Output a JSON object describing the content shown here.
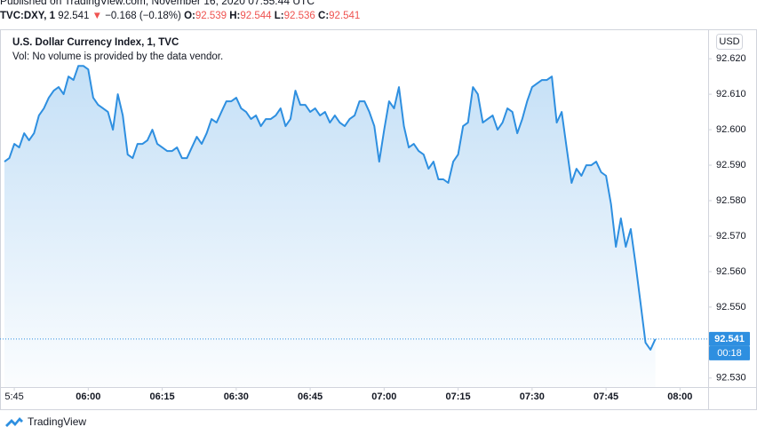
{
  "header": {
    "published": "Published on TradingView.com, November 16, 2020 07:55:44 UTC",
    "symbol": "TVC:DXY, 1",
    "last": "92.541",
    "arrow": "▼",
    "change": "−0.168 (−0.18%)",
    "o_label": "O:",
    "o": "92.539",
    "h_label": "H:",
    "h": "92.544",
    "l_label": "L:",
    "l": "92.536",
    "c_label": "C:",
    "c": "92.541"
  },
  "legend": {
    "title": "U.S. Dollar Currency Index, 1, TVC",
    "volume": "Vol: No volume is provided by the data vendor."
  },
  "currency_button": "USD",
  "footer": {
    "brand": "TradingView"
  },
  "chart_data": {
    "type": "area",
    "color": "#2e8fe0",
    "x": [
      343,
      344,
      345,
      346,
      347,
      348,
      349,
      350,
      351,
      352,
      353,
      354,
      355,
      356,
      357,
      358,
      359,
      360,
      361,
      362,
      363,
      364,
      365,
      366,
      367,
      368,
      369,
      370,
      371,
      372,
      373,
      374,
      375,
      376,
      377,
      378,
      379,
      380,
      381,
      382,
      383,
      384,
      385,
      386,
      387,
      388,
      389,
      390,
      391,
      392,
      393,
      394,
      395,
      396,
      397,
      398,
      399,
      400,
      401,
      402,
      403,
      404,
      405,
      406,
      407,
      408,
      409,
      410,
      411,
      412,
      413,
      414,
      415,
      416,
      417,
      418,
      419,
      420,
      421,
      422,
      423,
      424,
      425,
      426,
      427,
      428,
      429,
      430,
      431,
      432,
      433,
      434,
      435,
      436,
      437,
      438,
      439,
      440,
      441,
      442,
      443,
      444,
      445,
      446,
      447,
      448,
      449,
      450,
      451,
      452,
      453,
      454,
      455,
      456,
      457,
      458,
      459,
      460,
      461,
      462,
      463,
      464,
      465,
      466,
      467,
      468,
      469,
      470,
      471,
      472,
      473,
      474,
      475
    ],
    "values": [
      92.591,
      92.592,
      92.596,
      92.595,
      92.599,
      92.597,
      92.599,
      92.604,
      92.606,
      92.609,
      92.611,
      92.612,
      92.61,
      92.615,
      92.614,
      92.618,
      92.618,
      92.617,
      92.609,
      92.607,
      92.606,
      92.605,
      92.6,
      92.61,
      92.604,
      92.593,
      92.592,
      92.596,
      92.596,
      92.597,
      92.6,
      92.596,
      92.595,
      92.594,
      92.594,
      92.595,
      92.592,
      92.592,
      92.595,
      92.598,
      92.596,
      92.599,
      92.603,
      92.602,
      92.605,
      92.608,
      92.608,
      92.609,
      92.606,
      92.605,
      92.603,
      92.604,
      92.601,
      92.603,
      92.603,
      92.604,
      92.606,
      92.601,
      92.603,
      92.611,
      92.607,
      92.607,
      92.605,
      92.606,
      92.604,
      92.605,
      92.602,
      92.604,
      92.602,
      92.601,
      92.603,
      92.604,
      92.608,
      92.608,
      92.605,
      92.601,
      92.591,
      92.6,
      92.608,
      92.606,
      92.612,
      92.601,
      92.595,
      92.596,
      92.594,
      92.593,
      92.589,
      92.591,
      92.586,
      92.586,
      92.585,
      92.591,
      92.593,
      92.601,
      92.602,
      92.612,
      92.61,
      92.602,
      92.603,
      92.604,
      92.6,
      92.602,
      92.606,
      92.605,
      92.599,
      92.603,
      92.608,
      92.612,
      92.613,
      92.614,
      92.614,
      92.615,
      92.602,
      92.605,
      92.595,
      92.585,
      92.589,
      92.587,
      92.59,
      92.59,
      92.591,
      92.588,
      92.587,
      92.579,
      92.567,
      92.575,
      92.567,
      92.572,
      92.562,
      92.551,
      92.54,
      92.538,
      92.541
    ],
    "xlim": [
      342.1,
      485.7
    ],
    "xticks": [
      {
        "value": 345,
        "label": "5:45"
      },
      {
        "value": 360,
        "label": "06:00"
      },
      {
        "value": 375,
        "label": "06:15"
      },
      {
        "value": 390,
        "label": "06:30"
      },
      {
        "value": 405,
        "label": "06:45"
      },
      {
        "value": 420,
        "label": "07:00"
      },
      {
        "value": 435,
        "label": "07:15"
      },
      {
        "value": 450,
        "label": "07:30"
      },
      {
        "value": 465,
        "label": "07:45"
      },
      {
        "value": 480,
        "label": "08:00"
      }
    ],
    "ylim": [
      92.5232,
      92.6278
    ],
    "yticks": [
      {
        "value": 92.53,
        "label": "92.530"
      },
      {
        "value": 92.54,
        "label": "92.540"
      },
      {
        "value": 92.55,
        "label": "92.550"
      },
      {
        "value": 92.56,
        "label": "92.560"
      },
      {
        "value": 92.57,
        "label": "92.570"
      },
      {
        "value": 92.58,
        "label": "92.580"
      },
      {
        "value": 92.59,
        "label": "92.590"
      },
      {
        "value": 92.6,
        "label": "92.600"
      },
      {
        "value": 92.61,
        "label": "92.610"
      },
      {
        "value": 92.62,
        "label": "92.620"
      }
    ],
    "current_price": 92.541,
    "countdown": "00:18"
  }
}
